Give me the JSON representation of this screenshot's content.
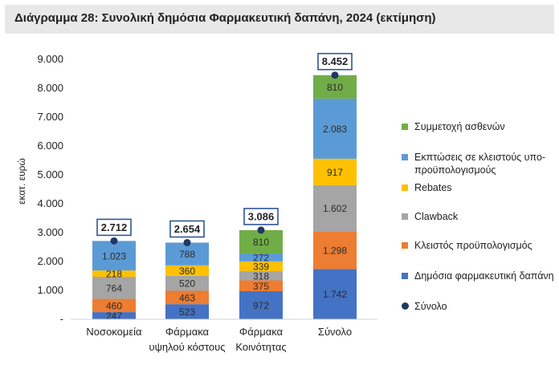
{
  "title": "Διάγραμμα 28: Συνολική δημόσια Φαρμακευτική δαπάνη, 2024 (εκτίμηση)",
  "chart_data": {
    "type": "bar",
    "stacked": true,
    "title": "Διάγραμμα 28: Συνολική δημόσια Φαρμακευτική δαπάνη, 2024 (εκτίμηση)",
    "ylabel": "εκατ. ευρώ",
    "xlabel": "",
    "ylim": [
      0,
      9000
    ],
    "yticks": [
      {
        "value": 0,
        "label": "-"
      },
      {
        "value": 1000,
        "label": "1.000"
      },
      {
        "value": 2000,
        "label": "2.000"
      },
      {
        "value": 3000,
        "label": "3.000"
      },
      {
        "value": 4000,
        "label": "4.000"
      },
      {
        "value": 5000,
        "label": "5.000"
      },
      {
        "value": 6000,
        "label": "6.000"
      },
      {
        "value": 7000,
        "label": "7.000"
      },
      {
        "value": 8000,
        "label": "8.000"
      },
      {
        "value": 9000,
        "label": "9.000"
      }
    ],
    "categories": [
      {
        "line1": "Νοσοκομεία",
        "line2": ""
      },
      {
        "line1": "Φάρμακα",
        "line2": "υψηλού κόστους"
      },
      {
        "line1": "Φάρμακα",
        "line2": "Κοινότητας"
      },
      {
        "line1": "Σύνολο",
        "line2": ""
      }
    ],
    "series": [
      {
        "name": "Δημόσια φαρμακευτική δαπάνη",
        "color": "#4472c4",
        "values": [
          247,
          523,
          972,
          1742
        ],
        "labels": [
          "247",
          "523",
          "972",
          "1.742"
        ]
      },
      {
        "name": "Κλειστός προϋπολογισμός",
        "color": "#ed7d31",
        "values": [
          460,
          463,
          375,
          1298
        ],
        "labels": [
          "460",
          "463",
          "375",
          "1.298"
        ]
      },
      {
        "name": "Clawback",
        "color": "#a5a5a5",
        "values": [
          764,
          520,
          318,
          1602
        ],
        "labels": [
          "764",
          "520",
          "318",
          "1.602"
        ]
      },
      {
        "name": "Rebates",
        "color": "#ffc000",
        "values": [
          218,
          360,
          339,
          917
        ],
        "labels": [
          "218",
          "360",
          "339",
          "917"
        ]
      },
      {
        "name": "Εκπτώσεις σε κλειστούς υπο-προϋπολογισμούς",
        "color": "#5b9bd5",
        "values": [
          1023,
          788,
          272,
          2083
        ],
        "labels": [
          "1.023",
          "788",
          "272",
          "2.083"
        ]
      },
      {
        "name": "Συμμετοχή ασθενών",
        "color": "#70ad47",
        "values": [
          0,
          0,
          810,
          810
        ],
        "labels": [
          "",
          "",
          "810",
          "810"
        ]
      }
    ],
    "totals": {
      "name": "Σύνολο",
      "color": "#1f3864",
      "values": [
        2712,
        2654,
        3086,
        8452
      ],
      "labels": [
        "2.712",
        "2.654",
        "3.086",
        "8.452"
      ]
    },
    "legend": {
      "position": "right",
      "items": [
        {
          "text": "Συμμετοχή ασθενών",
          "color": "#70ad47",
          "kind": "swatch"
        },
        {
          "text": "Εκπτώσεις σε κλειστούς υπο-προϋπολογισμούς",
          "color": "#5b9bd5",
          "kind": "swatch"
        },
        {
          "text": "Rebates",
          "color": "#ffc000",
          "kind": "swatch"
        },
        {
          "text": "Clawback",
          "color": "#a5a5a5",
          "kind": "swatch"
        },
        {
          "text": "Κλειστός προϋπολογισμός",
          "color": "#ed7d31",
          "kind": "swatch"
        },
        {
          "text": "Δημόσια φαρμακευτική δαπάνη",
          "color": "#4472c4",
          "kind": "swatch"
        },
        {
          "text": "Σύνολο",
          "color": "#1f3864",
          "kind": "dot"
        }
      ]
    }
  }
}
